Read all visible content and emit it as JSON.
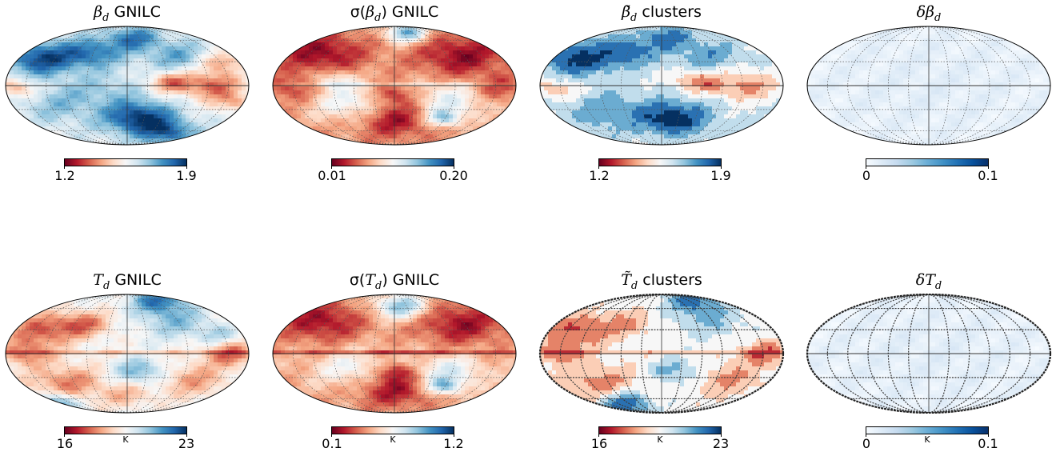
{
  "chart_data": [
    {
      "type": "heatmap",
      "projection": "mollweide",
      "title": "βd GNILC",
      "title_symbol": "β",
      "title_sub": "d",
      "title_text": " GNILC",
      "title_prefix": "",
      "title_suffix": "",
      "colormap": "RdBu",
      "vmin": 1.2,
      "vmax": 1.9,
      "tick_labels": [
        "1.2",
        "1.9"
      ],
      "unit": "",
      "texture": "beta_gnilc",
      "grid": true,
      "grid_style": "dotted"
    },
    {
      "type": "heatmap",
      "projection": "mollweide",
      "title": "σ(βd) GNILC",
      "title_symbol": "β",
      "title_sub": "d",
      "title_text": ") GNILC",
      "title_prefix": "σ(",
      "title_suffix": "",
      "colormap": "RdBu",
      "vmin": 0.01,
      "vmax": 0.2,
      "tick_labels": [
        "0.01",
        "0.20"
      ],
      "unit": "",
      "texture": "sigma_beta",
      "grid": true,
      "grid_style": "dotted"
    },
    {
      "type": "heatmap",
      "projection": "mollweide",
      "title": "β̃d clusters",
      "title_symbol": "β̃",
      "title_sub": "d",
      "title_text": " clusters",
      "title_prefix": "",
      "title_suffix": "",
      "colormap": "RdBu",
      "vmin": 1.2,
      "vmax": 1.9,
      "tick_labels": [
        "1.2",
        "1.9"
      ],
      "unit": "",
      "texture": "beta_clusters",
      "grid": true,
      "grid_style": "dotted"
    },
    {
      "type": "heatmap",
      "projection": "mollweide",
      "title": "δβd",
      "title_symbol": "δβ",
      "title_sub": "d",
      "title_text": "",
      "title_prefix": "",
      "title_suffix": "",
      "colormap": "Blues",
      "vmin": 0,
      "vmax": 0.1,
      "tick_labels": [
        "0",
        "0.1"
      ],
      "unit": "",
      "texture": "delta",
      "grid": true,
      "grid_style": "dotted"
    },
    {
      "type": "heatmap",
      "projection": "mollweide",
      "title": "Td GNILC",
      "title_symbol": "T",
      "title_sub": "d",
      "title_text": " GNILC",
      "title_prefix": "",
      "title_suffix": "",
      "colormap": "RdBu",
      "vmin": 16,
      "vmax": 23,
      "tick_labels": [
        "16",
        "23"
      ],
      "unit": "K",
      "texture": "t_gnilc",
      "grid": true,
      "grid_style": "dotted"
    },
    {
      "type": "heatmap",
      "projection": "mollweide",
      "title": "σ(Td) GNILC",
      "title_symbol": "T",
      "title_sub": "d",
      "title_text": ") GNILC",
      "title_prefix": "σ(",
      "title_suffix": "",
      "colormap": "RdBu",
      "vmin": 0.1,
      "vmax": 1.2,
      "tick_labels": [
        "0.1",
        "1.2"
      ],
      "unit": "K",
      "texture": "sigma_t",
      "grid": true,
      "grid_style": "dotted"
    },
    {
      "type": "heatmap",
      "projection": "mollweide",
      "title": "T̃d clusters",
      "title_symbol": "T̃",
      "title_sub": "d",
      "title_text": " clusters",
      "title_prefix": "",
      "title_suffix": "",
      "colormap": "RdBu",
      "vmin": 16,
      "vmax": 23,
      "tick_labels": [
        "16",
        "23"
      ],
      "unit": "K",
      "texture": "t_clusters",
      "grid": true,
      "grid_style": "bold"
    },
    {
      "type": "heatmap",
      "projection": "mollweide",
      "title": "δTd",
      "title_symbol": "δT",
      "title_sub": "d",
      "title_text": "",
      "title_prefix": "",
      "title_suffix": "",
      "colormap": "Blues",
      "vmin": 0,
      "vmax": 0.1,
      "tick_labels": [
        "0",
        "0.1"
      ],
      "unit": "K",
      "texture": "delta",
      "grid": true,
      "grid_style": "bold"
    }
  ]
}
